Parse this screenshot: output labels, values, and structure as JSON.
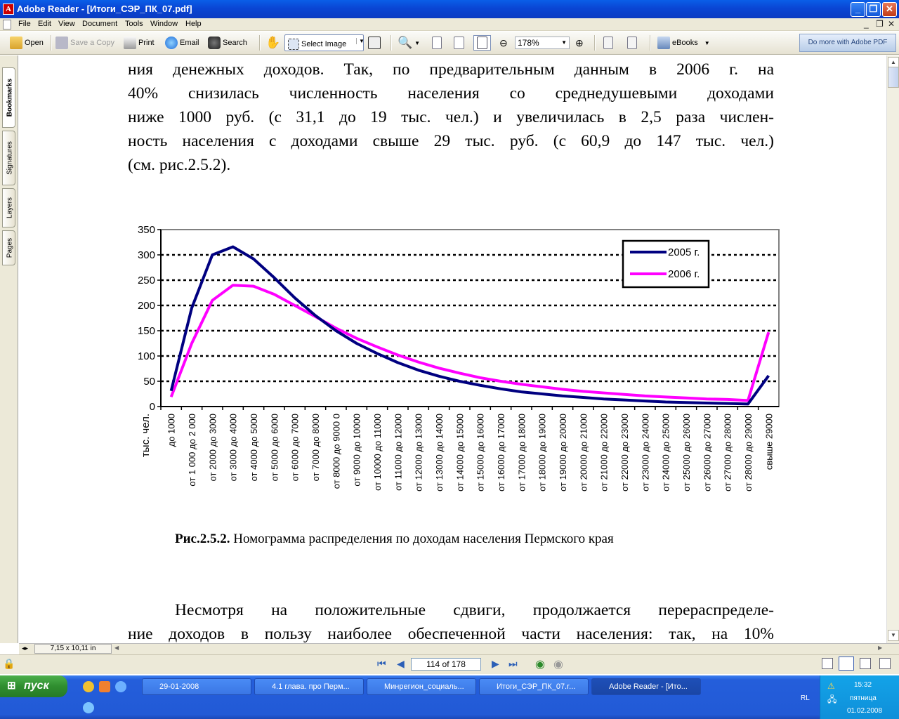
{
  "window": {
    "app": "Adobe Reader",
    "title": "Adobe Reader - [Итоги_СЭР_ПК_07.pdf]"
  },
  "menu": [
    "File",
    "Edit",
    "View",
    "Document",
    "Tools",
    "Window",
    "Help"
  ],
  "toolbar": {
    "open": "Open",
    "save_copy": "Save a Copy",
    "print": "Print",
    "email": "Email",
    "search": "Search",
    "select_image": "Select Image",
    "zoom": "178%",
    "ebooks": "eBooks",
    "do_more": "Do more with Adobe PDF"
  },
  "nav_tabs": [
    "Bookmarks",
    "Signatures",
    "Layers",
    "Pages"
  ],
  "document": {
    "para1": [
      "ния денежных доходов. Так, по предварительным данным в 2006 г. на",
      "40% снизилась численность населения со среднедушевыми доходами",
      "ниже 1000 руб. (с 31,1 до 19 тыс. чел.) и увеличилась в 2,5 раза числен-",
      "ность населения с доходами свыше 29 тыс. руб. (с 60,9 до 147 тыс. чел.)",
      "(см. рис.2.5.2)."
    ],
    "caption_bold": "Рис.2.5.2.",
    "caption_text": " Номограмма распределения по доходам населения Пермского края",
    "para2": [
      "Несмотря на положительные сдвиги, продолжается перераспределе-",
      "ние доходов в пользу наиболее обеспеченной части населения: так, на 10%"
    ]
  },
  "chart_data": {
    "type": "line",
    "ylabel": "тыс. чел.",
    "ylim": [
      0,
      350
    ],
    "yticks": [
      0,
      50,
      100,
      150,
      200,
      250,
      300,
      350
    ],
    "grid": "horizontal dotted",
    "legend_position": "top-right",
    "categories": [
      "до 1000",
      "от 1 000 до 2 000",
      "от 2000 до 3000",
      "от 3000 до 4000",
      "от 4000  до 5000",
      "от 5000  до 6000",
      "от 6000  до 7000",
      "от 7000  до 8000",
      "от 8000  до 9000 0",
      "от 9000  до 10000",
      "от 10000  до 11000",
      "от 11000  до 12000",
      "от 12000  до 13000",
      "от 13000  до 14000",
      "от 14000  до 15000",
      "от 15000  до 16000",
      "от 16000  до 17000",
      "от 17000  до 18000",
      "от 18000  до 19000",
      "от 19000  до 20000",
      "от 20000 до 21000",
      "от 21000 до 22000",
      "от 22000 до 23000",
      "от 23000 до 24000",
      "от 24000 до 25000",
      "от 25000 до 26000",
      "от 26000 до 27000",
      "от 27000 до 28000",
      "от 28000 до 29000",
      "свыше 29000"
    ],
    "series": [
      {
        "name": "2005 г.",
        "color": "#000080",
        "values": [
          31,
          195,
          300,
          316,
          292,
          255,
          215,
          180,
          150,
          125,
          105,
          87,
          72,
          60,
          50,
          42,
          35,
          29,
          25,
          21,
          18,
          15,
          13,
          11,
          9,
          8,
          7,
          6,
          5,
          61
        ]
      },
      {
        "name": "2006 г.",
        "color": "#ff00ff",
        "values": [
          19,
          125,
          210,
          240,
          238,
          222,
          200,
          178,
          155,
          135,
          118,
          102,
          88,
          76,
          66,
          57,
          50,
          44,
          39,
          34,
          30,
          27,
          24,
          21,
          19,
          17,
          15,
          14,
          12,
          147
        ]
      }
    ]
  },
  "scroll_info": "7,15 x 10,11 in",
  "page_nav": {
    "current": "114 of 178"
  },
  "taskbar": {
    "start": "пуск",
    "tasks": [
      "29-01-2008",
      "4.1 глава. про Перм...",
      "Минрегион_социаль...",
      "Итоги_СЭР_ПК_07.r...",
      "Adobe Reader - [Ито..."
    ],
    "lang": "RL",
    "time": "15:32",
    "day": "пятница",
    "date": "01.02.2008"
  }
}
